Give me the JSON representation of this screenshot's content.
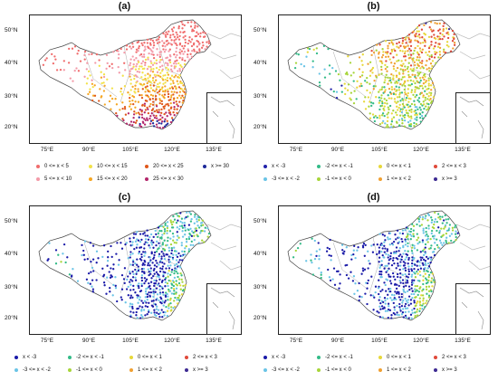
{
  "figure": {
    "panels": [
      {
        "id": "a",
        "title": "(a)",
        "palette": "abs",
        "y_ticks": [
          "50°N",
          "40°N",
          "30°N",
          "20°N"
        ],
        "x_ticks": [
          "75°E",
          "90°E",
          "105°E",
          "120°E",
          "135°E"
        ],
        "legend": [
          {
            "label": "0 <= x < 5",
            "color": "#f06c6c"
          },
          {
            "label": "10 <= x < 15",
            "color": "#f2e24a"
          },
          {
            "label": "20 <= x < 25",
            "color": "#e0571a"
          },
          {
            "label": "x >= 30",
            "color": "#1e2a9a"
          },
          {
            "label": "5 <= x < 10",
            "color": "#f39aa8"
          },
          {
            "label": "15 <= x < 20",
            "color": "#f5a623"
          },
          {
            "label": "25 <= x < 30",
            "color": "#b3266b"
          }
        ]
      },
      {
        "id": "b",
        "title": "(b)",
        "palette": "anom_b",
        "y_ticks": [
          "50°N",
          "40°N",
          "30°N",
          "20°N"
        ],
        "x_ticks": [
          "75°E",
          "90°E",
          "105°E",
          "120°E",
          "135°E"
        ],
        "legend": [
          {
            "label": "x < -3",
            "color": "#2222aa"
          },
          {
            "label": "-2 <= x < -1",
            "color": "#33bb88"
          },
          {
            "label": "0 <= x < 1",
            "color": "#e7d83a"
          },
          {
            "label": "2 <= x < 3",
            "color": "#e04a3a"
          },
          {
            "label": "-3 <= x < -2",
            "color": "#6ac4e6"
          },
          {
            "label": "-1 <= x < 0",
            "color": "#a7d53a"
          },
          {
            "label": "1 <= x < 2",
            "color": "#f0a032"
          },
          {
            "label": "x >= 3",
            "color": "#3d2a92"
          }
        ]
      },
      {
        "id": "c",
        "title": "(c)",
        "palette": "anom_cd",
        "y_ticks": [
          "50°N",
          "40°N",
          "30°N",
          "20°N"
        ],
        "x_ticks": [
          "75°E",
          "90°E",
          "105°E",
          "120°E",
          "135°E"
        ],
        "legend": [
          {
            "label": "x < -3",
            "color": "#1a1aa8"
          },
          {
            "label": "-2 <= x < -1",
            "color": "#33bb88"
          },
          {
            "label": "0 <= x < 1",
            "color": "#e7d83a"
          },
          {
            "label": "2 <= x < 3",
            "color": "#e04a3a"
          },
          {
            "label": "-3 <= x < -2",
            "color": "#6ac4e6"
          },
          {
            "label": "-1 <= x < 0",
            "color": "#a7d53a"
          },
          {
            "label": "1 <= x < 2",
            "color": "#f0a032"
          },
          {
            "label": "x >= 3",
            "color": "#3d2a92"
          }
        ]
      },
      {
        "id": "d",
        "title": "(d)",
        "palette": "anom_cd",
        "y_ticks": [
          "50°N",
          "40°N",
          "30°N",
          "20°N"
        ],
        "x_ticks": [
          "75°E",
          "90°E",
          "105°E",
          "120°E",
          "135°E"
        ],
        "legend": [
          {
            "label": "x < -3",
            "color": "#1a1aa8"
          },
          {
            "label": "-2 <= x < -1",
            "color": "#33bb88"
          },
          {
            "label": "0 <= x < 1",
            "color": "#e7d83a"
          },
          {
            "label": "2 <= x < 3",
            "color": "#e04a3a"
          },
          {
            "label": "-3 <= x < -2",
            "color": "#6ac4e6"
          },
          {
            "label": "-1 <= x < 0",
            "color": "#a7d53a"
          },
          {
            "label": "1 <= x < 2",
            "color": "#f0a032"
          },
          {
            "label": "x >= 3",
            "color": "#3d2a92"
          }
        ]
      }
    ]
  }
}
